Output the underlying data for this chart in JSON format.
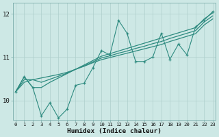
{
  "x": [
    0,
    1,
    2,
    3,
    4,
    5,
    6,
    7,
    8,
    9,
    10,
    11,
    12,
    13,
    14,
    15,
    16,
    17,
    18,
    19,
    20,
    21,
    22,
    23
  ],
  "line_zigzag": [
    10.2,
    10.55,
    10.3,
    9.65,
    9.95,
    9.6,
    9.8,
    10.35,
    10.4,
    10.75,
    11.15,
    11.05,
    11.85,
    11.55,
    10.9,
    10.9,
    11.0,
    11.55,
    10.95,
    11.3,
    11.05,
    11.7,
    11.85,
    12.05
  ],
  "line_upper": [
    10.2,
    10.55,
    10.3,
    10.3,
    10.42,
    10.52,
    10.62,
    10.72,
    10.82,
    10.92,
    11.02,
    11.08,
    11.14,
    11.2,
    11.26,
    11.32,
    11.38,
    11.44,
    11.5,
    11.56,
    11.62,
    11.68,
    11.88,
    12.02
  ],
  "line_lower": [
    10.2,
    10.42,
    10.48,
    10.52,
    10.56,
    10.6,
    10.65,
    10.72,
    10.79,
    10.87,
    10.94,
    10.99,
    11.04,
    11.09,
    11.14,
    11.19,
    11.24,
    11.29,
    11.36,
    11.42,
    11.48,
    11.54,
    11.74,
    11.88
  ],
  "line_mid": [
    10.2,
    10.48,
    10.48,
    10.42,
    10.49,
    10.56,
    10.63,
    10.72,
    10.8,
    10.89,
    10.98,
    11.03,
    11.09,
    11.14,
    11.2,
    11.25,
    11.31,
    11.36,
    11.43,
    11.49,
    11.55,
    11.61,
    11.81,
    11.95
  ],
  "bg_color": "#cde8e5",
  "grid_color": "#aecfcc",
  "line_color": "#2e8b80",
  "xlabel": "Humidex (Indice chaleur)",
  "yticks": [
    10,
    11,
    12
  ],
  "xticks": [
    0,
    1,
    2,
    3,
    4,
    5,
    6,
    7,
    8,
    9,
    10,
    11,
    12,
    13,
    14,
    15,
    16,
    17,
    18,
    19,
    20,
    21,
    22,
    23
  ],
  "ylim": [
    9.55,
    12.25
  ],
  "xlim": [
    -0.3,
    23.3
  ]
}
